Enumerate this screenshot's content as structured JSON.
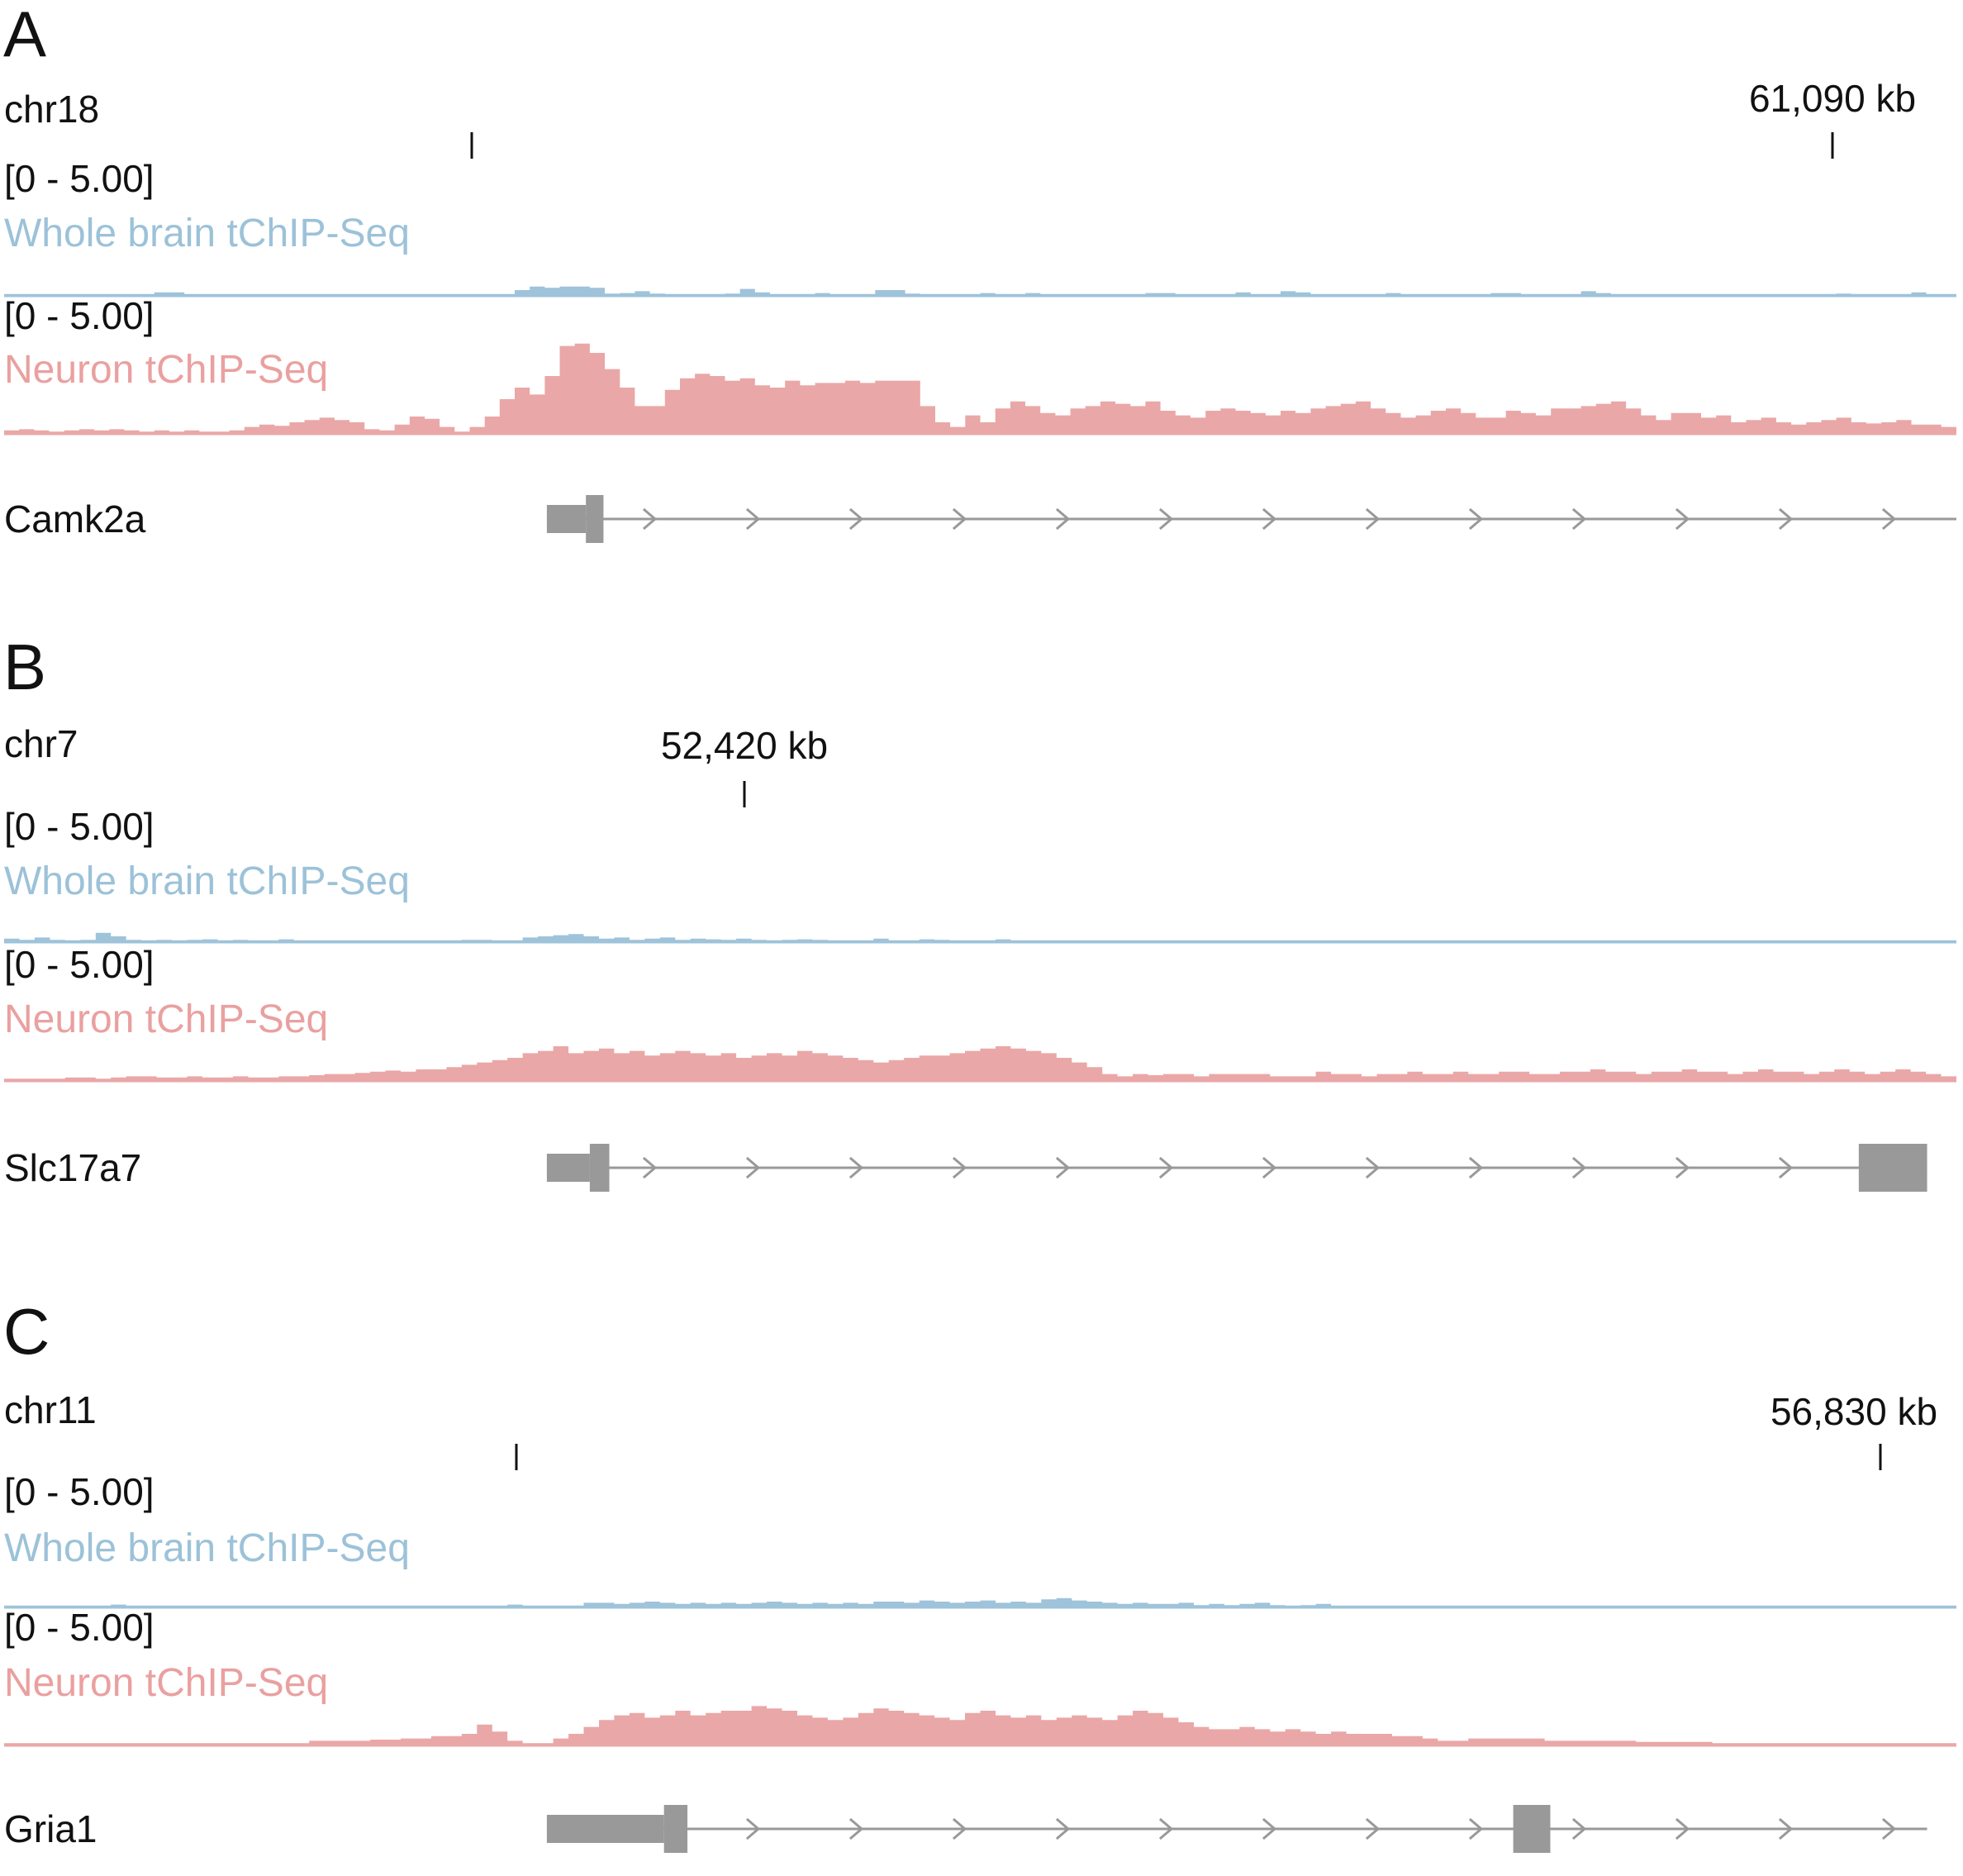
{
  "colors": {
    "whole_brain": "#9ec3da",
    "neuron": "#eaa7a7",
    "gene": "#999999",
    "text": "#111111"
  },
  "chart_data": [
    {
      "type": "area",
      "panel": "A",
      "chromosome": "chr18",
      "position_labels": [
        "61,090 kb"
      ],
      "tracks": [
        {
          "name": "Whole brain tChIP-Seq",
          "range_label": "[0 - 5.00]",
          "ylim": [
            0,
            5
          ],
          "values": [
            0.08,
            0.08,
            0.08,
            0.08,
            0.08,
            0.08,
            0.08,
            0.08,
            0.08,
            0.08,
            0.15,
            0.15,
            0.08,
            0.08,
            0.08,
            0.08,
            0.08,
            0.08,
            0.08,
            0.08,
            0.08,
            0.08,
            0.08,
            0.08,
            0.08,
            0.08,
            0.08,
            0.08,
            0.08,
            0.08,
            0.08,
            0.08,
            0.08,
            0.08,
            0.25,
            0.4,
            0.35,
            0.4,
            0.4,
            0.35,
            0.1,
            0.12,
            0.2,
            0.1,
            0.08,
            0.08,
            0.08,
            0.08,
            0.1,
            0.3,
            0.15,
            0.08,
            0.08,
            0.08,
            0.12,
            0.08,
            0.08,
            0.08,
            0.25,
            0.25,
            0.1,
            0.08,
            0.08,
            0.08,
            0.08,
            0.12,
            0.08,
            0.08,
            0.12,
            0.08,
            0.08,
            0.08,
            0.08,
            0.08,
            0.08,
            0.08,
            0.12,
            0.12,
            0.08,
            0.08,
            0.08,
            0.08,
            0.15,
            0.08,
            0.08,
            0.2,
            0.15,
            0.08,
            0.08,
            0.08,
            0.08,
            0.08,
            0.12,
            0.08,
            0.08,
            0.08,
            0.08,
            0.08,
            0.08,
            0.12,
            0.12,
            0.08,
            0.08,
            0.08,
            0.08,
            0.2,
            0.12,
            0.08,
            0.08,
            0.08,
            0.08,
            0.08,
            0.08,
            0.08,
            0.08,
            0.08,
            0.08,
            0.08,
            0.08,
            0.08,
            0.08,
            0.08,
            0.1,
            0.08,
            0.08,
            0.08,
            0.08,
            0.15,
            0.08,
            0.08
          ]
        },
        {
          "name": "Neuron tChIP-Seq",
          "range_label": "[0 - 5.00]",
          "ylim": [
            0,
            5
          ],
          "values": [
            0.15,
            0.2,
            0.15,
            0.1,
            0.15,
            0.2,
            0.15,
            0.2,
            0.15,
            0.1,
            0.15,
            0.1,
            0.15,
            0.1,
            0.1,
            0.15,
            0.3,
            0.4,
            0.35,
            0.5,
            0.6,
            0.7,
            0.6,
            0.5,
            0.2,
            0.15,
            0.4,
            0.75,
            0.65,
            0.3,
            0.1,
            0.3,
            0.75,
            1.5,
            2.0,
            1.7,
            2.5,
            3.8,
            3.9,
            3.5,
            2.8,
            2.0,
            1.2,
            1.2,
            1.9,
            2.4,
            2.6,
            2.5,
            2.3,
            2.4,
            2.1,
            2.0,
            2.3,
            2.1,
            2.2,
            2.2,
            2.3,
            2.2,
            2.3,
            2.3,
            2.3,
            1.2,
            0.5,
            0.3,
            0.8,
            0.5,
            1.1,
            1.4,
            1.2,
            0.9,
            0.8,
            1.1,
            1.2,
            1.4,
            1.3,
            1.2,
            1.4,
            1.0,
            0.8,
            0.7,
            1.0,
            1.1,
            1.0,
            0.9,
            0.8,
            1.0,
            0.9,
            1.1,
            1.2,
            1.3,
            1.4,
            1.1,
            0.9,
            0.7,
            0.8,
            1.0,
            1.1,
            0.9,
            0.7,
            0.7,
            1.0,
            0.9,
            0.8,
            1.1,
            1.1,
            1.2,
            1.3,
            1.4,
            1.1,
            0.8,
            0.6,
            0.9,
            0.9,
            0.7,
            0.8,
            0.5,
            0.6,
            0.7,
            0.5,
            0.4,
            0.5,
            0.6,
            0.7,
            0.5,
            0.45,
            0.5,
            0.6,
            0.4,
            0.4,
            0.3
          ]
        },
        {
          "name": "Camk2a",
          "kind": "gene",
          "start": 0.278,
          "end": 1.0,
          "blocks": [
            {
              "start": 0.278,
              "end": 0.298,
              "thick": false
            },
            {
              "start": 0.298,
              "end": 0.307,
              "thick": true
            }
          ]
        }
      ]
    },
    {
      "type": "area",
      "panel": "B",
      "chromosome": "chr7",
      "position_labels": [
        "52,420 kb"
      ],
      "tracks": [
        {
          "name": "Whole brain tChIP-Seq",
          "range_label": "[0 - 5.00]",
          "ylim": [
            0,
            5
          ],
          "values": [
            0.15,
            0.1,
            0.2,
            0.1,
            0.08,
            0.1,
            0.4,
            0.25,
            0.1,
            0.08,
            0.1,
            0.08,
            0.1,
            0.12,
            0.08,
            0.1,
            0.08,
            0.08,
            0.12,
            0.08,
            0.08,
            0.08,
            0.08,
            0.08,
            0.08,
            0.08,
            0.08,
            0.08,
            0.08,
            0.08,
            0.1,
            0.1,
            0.08,
            0.08,
            0.2,
            0.25,
            0.3,
            0.35,
            0.25,
            0.15,
            0.2,
            0.1,
            0.15,
            0.2,
            0.1,
            0.15,
            0.12,
            0.1,
            0.15,
            0.1,
            0.08,
            0.1,
            0.12,
            0.1,
            0.08,
            0.08,
            0.08,
            0.15,
            0.08,
            0.08,
            0.12,
            0.1,
            0.08,
            0.08,
            0.08,
            0.12,
            0.08,
            0.08,
            0.08,
            0.08,
            0.08,
            0.08,
            0.08,
            0.08,
            0.08,
            0.08,
            0.08,
            0.08,
            0.08,
            0.08,
            0.08,
            0.08,
            0.08,
            0.08,
            0.08,
            0.08,
            0.08,
            0.08,
            0.08,
            0.08,
            0.08,
            0.08,
            0.08,
            0.08,
            0.08,
            0.08,
            0.08,
            0.08,
            0.08,
            0.08,
            0.08,
            0.08,
            0.08,
            0.08,
            0.08,
            0.08,
            0.08,
            0.08,
            0.08,
            0.08,
            0.08,
            0.08,
            0.08,
            0.08,
            0.08,
            0.08,
            0.08,
            0.08,
            0.08,
            0.08,
            0.08,
            0.08,
            0.08,
            0.08,
            0.08,
            0.08,
            0.08,
            0.08
          ]
        },
        {
          "name": "Neuron tChIP-Seq",
          "range_label": "[0 - 5.00]",
          "ylim": [
            0,
            5
          ],
          "values": [
            0.1,
            0.1,
            0.1,
            0.1,
            0.15,
            0.15,
            0.1,
            0.15,
            0.2,
            0.2,
            0.15,
            0.15,
            0.2,
            0.15,
            0.15,
            0.2,
            0.15,
            0.15,
            0.2,
            0.2,
            0.25,
            0.3,
            0.3,
            0.35,
            0.4,
            0.45,
            0.4,
            0.5,
            0.5,
            0.6,
            0.7,
            0.8,
            0.9,
            1.0,
            1.2,
            1.3,
            1.5,
            1.2,
            1.3,
            1.4,
            1.2,
            1.3,
            1.1,
            1.2,
            1.3,
            1.2,
            1.1,
            1.2,
            1.0,
            1.1,
            1.2,
            1.1,
            1.3,
            1.2,
            1.1,
            1.0,
            0.9,
            0.8,
            0.9,
            1.0,
            1.1,
            1.1,
            1.2,
            1.3,
            1.4,
            1.5,
            1.4,
            1.3,
            1.2,
            1.0,
            0.8,
            0.6,
            0.3,
            0.2,
            0.3,
            0.25,
            0.3,
            0.3,
            0.2,
            0.3,
            0.3,
            0.3,
            0.3,
            0.2,
            0.2,
            0.2,
            0.4,
            0.3,
            0.3,
            0.2,
            0.3,
            0.3,
            0.4,
            0.3,
            0.3,
            0.4,
            0.3,
            0.3,
            0.4,
            0.4,
            0.3,
            0.3,
            0.4,
            0.4,
            0.5,
            0.4,
            0.4,
            0.3,
            0.4,
            0.4,
            0.5,
            0.4,
            0.4,
            0.3,
            0.4,
            0.5,
            0.4,
            0.4,
            0.3,
            0.4,
            0.5,
            0.4,
            0.3,
            0.4,
            0.5,
            0.4,
            0.3,
            0.2
          ]
        },
        {
          "name": "Slc17a7",
          "kind": "gene",
          "start": 0.278,
          "end": 0.985,
          "blocks": [
            {
              "start": 0.278,
              "end": 0.3,
              "thick": false
            },
            {
              "start": 0.3,
              "end": 0.31,
              "thick": true
            },
            {
              "start": 0.95,
              "end": 0.985,
              "thick": true
            }
          ]
        }
      ]
    },
    {
      "type": "area",
      "panel": "C",
      "chromosome": "chr11",
      "position_labels": [
        "56,830 kb"
      ],
      "tracks": [
        {
          "name": "Whole brain tChIP-Seq",
          "range_label": "[0 - 5.00]",
          "ylim": [
            0,
            5
          ],
          "values": [
            0.08,
            0.08,
            0.08,
            0.08,
            0.08,
            0.08,
            0.08,
            0.12,
            0.08,
            0.08,
            0.08,
            0.08,
            0.08,
            0.08,
            0.08,
            0.08,
            0.08,
            0.08,
            0.08,
            0.08,
            0.08,
            0.08,
            0.08,
            0.08,
            0.08,
            0.08,
            0.08,
            0.08,
            0.08,
            0.08,
            0.08,
            0.08,
            0.08,
            0.12,
            0.08,
            0.08,
            0.08,
            0.08,
            0.2,
            0.2,
            0.15,
            0.2,
            0.25,
            0.2,
            0.15,
            0.2,
            0.15,
            0.2,
            0.15,
            0.2,
            0.25,
            0.2,
            0.15,
            0.2,
            0.15,
            0.2,
            0.15,
            0.25,
            0.25,
            0.2,
            0.3,
            0.25,
            0.2,
            0.25,
            0.3,
            0.2,
            0.25,
            0.2,
            0.35,
            0.4,
            0.3,
            0.25,
            0.2,
            0.15,
            0.2,
            0.15,
            0.15,
            0.2,
            0.1,
            0.15,
            0.1,
            0.15,
            0.2,
            0.1,
            0.08,
            0.1,
            0.15,
            0.08,
            0.08,
            0.08,
            0.08,
            0.08,
            0.08,
            0.08,
            0.08,
            0.08,
            0.08,
            0.08,
            0.08,
            0.08,
            0.08,
            0.08,
            0.08,
            0.08,
            0.08,
            0.08,
            0.08,
            0.08,
            0.08,
            0.08,
            0.08,
            0.08,
            0.08,
            0.08,
            0.08,
            0.08,
            0.08,
            0.08,
            0.08,
            0.08,
            0.08,
            0.08,
            0.08,
            0.08,
            0.08,
            0.08,
            0.08,
            0.08
          ]
        },
        {
          "name": "Neuron tChIP-Seq",
          "range_label": "[0 - 5.00]",
          "ylim": [
            0,
            5
          ],
          "values": [
            0.1,
            0.1,
            0.1,
            0.1,
            0.1,
            0.1,
            0.1,
            0.1,
            0.1,
            0.1,
            0.1,
            0.1,
            0.1,
            0.1,
            0.1,
            0.1,
            0.1,
            0.1,
            0.1,
            0.1,
            0.2,
            0.2,
            0.2,
            0.2,
            0.25,
            0.25,
            0.3,
            0.3,
            0.4,
            0.4,
            0.5,
            0.9,
            0.6,
            0.2,
            0.1,
            0.1,
            0.3,
            0.5,
            0.8,
            1.1,
            1.3,
            1.4,
            1.2,
            1.3,
            1.5,
            1.3,
            1.4,
            1.5,
            1.5,
            1.7,
            1.6,
            1.5,
            1.3,
            1.2,
            1.1,
            1.2,
            1.4,
            1.6,
            1.5,
            1.4,
            1.3,
            1.2,
            1.1,
            1.4,
            1.5,
            1.3,
            1.2,
            1.3,
            1.1,
            1.2,
            1.3,
            1.2,
            1.1,
            1.3,
            1.5,
            1.4,
            1.2,
            1.0,
            0.8,
            0.7,
            0.7,
            0.8,
            0.7,
            0.6,
            0.7,
            0.6,
            0.5,
            0.6,
            0.5,
            0.5,
            0.5,
            0.4,
            0.4,
            0.3,
            0.2,
            0.2,
            0.3,
            0.3,
            0.3,
            0.3,
            0.3,
            0.2,
            0.2,
            0.2,
            0.2,
            0.2,
            0.2,
            0.15,
            0.15,
            0.15,
            0.15,
            0.15,
            0.1,
            0.1,
            0.1,
            0.1,
            0.1,
            0.1,
            0.1,
            0.1,
            0.1,
            0.1,
            0.1,
            0.1,
            0.1,
            0.1,
            0.1,
            0.1
          ]
        },
        {
          "name": "Gria1",
          "kind": "gene",
          "start": 0.278,
          "end": 0.985,
          "blocks": [
            {
              "start": 0.278,
              "end": 0.338,
              "thick": false
            },
            {
              "start": 0.338,
              "end": 0.35,
              "thick": true
            },
            {
              "start": 0.773,
              "end": 0.792,
              "thick": true
            }
          ]
        }
      ]
    }
  ]
}
